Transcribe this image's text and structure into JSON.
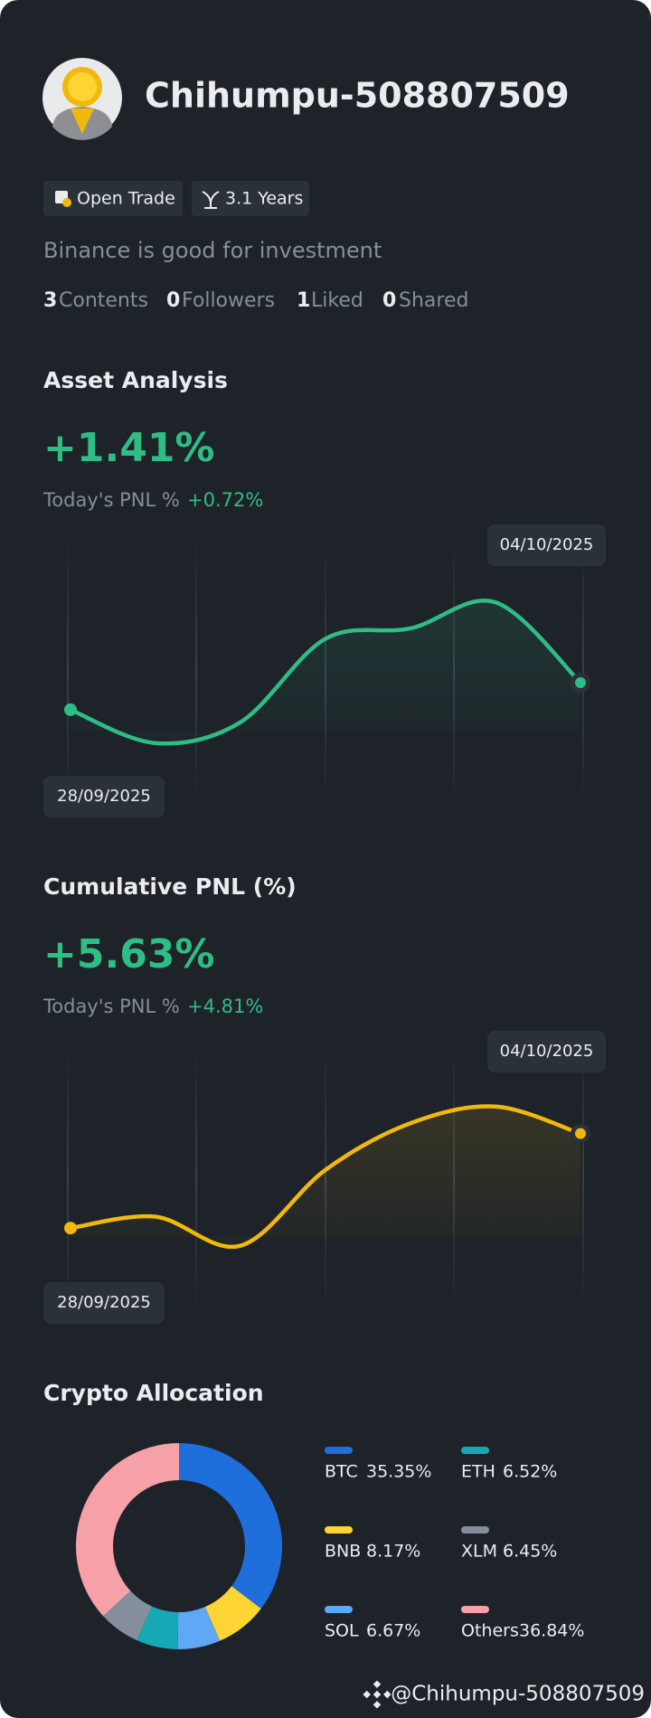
{
  "profile": {
    "name": "Chihumpu-508807509",
    "badges": [
      "Open Trade",
      "3.1 Years"
    ],
    "bio": "Binance is good for investment",
    "stats": [
      {
        "value": 3,
        "label": "Contents"
      },
      {
        "value": 0,
        "label": "Followers"
      },
      {
        "value": 1,
        "label": "Liked"
      },
      {
        "value": 0,
        "label": "Shared"
      }
    ]
  },
  "chart_data": [
    {
      "type": "line",
      "title": "Asset Analysis",
      "headline": "+1.41%",
      "pnl_label": "Today's PNL %",
      "pnl_value": "+0.72%",
      "categories": [
        "28/09/2025",
        null,
        null,
        null,
        null,
        null,
        "04/10/2025"
      ],
      "series": [
        {
          "color": "#2ebd85",
          "values": [
            0,
            -1.74,
            -0.65,
            3.7,
            4.24,
            5.6,
            1.41
          ]
        }
      ],
      "ylim": [
        -5,
        9
      ]
    },
    {
      "type": "line",
      "title": "Cumulative PNL (%)",
      "headline": "+5.63%",
      "pnl_label": "Today's PNL %",
      "pnl_value": "+4.81%",
      "categories": [
        "28/09/2025",
        null,
        null,
        null,
        null,
        null,
        "04/10/2025"
      ],
      "series": [
        {
          "color": "#f0b90b",
          "values": [
            0,
            0.68,
            -1.05,
            3.47,
            6.25,
            7.24,
            5.63
          ]
        }
      ],
      "ylim": [
        -5,
        11
      ]
    },
    {
      "type": "pie",
      "title": "Crypto Allocation",
      "categories": [
        "BTC",
        "BNB",
        "SOL",
        "ETH",
        "XLM",
        "Others"
      ],
      "values": [
        35.35,
        8.17,
        6.67,
        6.52,
        6.45,
        36.84
      ],
      "value_labels": [
        "35.35%",
        "8.17%",
        "6.67%",
        "6.52%",
        "6.45%",
        "36.84%"
      ],
      "colors": [
        "#1e6fdc",
        "#fcd535",
        "#5fa8f5",
        "#17a8b5",
        "#848e9c",
        "#f6a0a8"
      ]
    }
  ],
  "footer": "@Chihumpu-508807509"
}
